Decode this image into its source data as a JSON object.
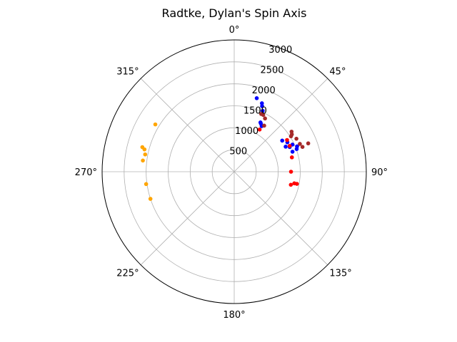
{
  "chart_data": {
    "type": "scatter",
    "projection": "polar",
    "title": "Radtke, Dylan's Spin Axis",
    "theta_zero_location": "top",
    "theta_direction": "clockwise",
    "theta_ticks": [
      {
        "deg": 0,
        "label": "0°"
      },
      {
        "deg": 45,
        "label": "45°"
      },
      {
        "deg": 90,
        "label": "90°"
      },
      {
        "deg": 135,
        "label": "135°"
      },
      {
        "deg": 180,
        "label": "180°"
      },
      {
        "deg": 225,
        "label": "225°"
      },
      {
        "deg": 270,
        "label": "270°"
      },
      {
        "deg": 315,
        "label": "315°"
      }
    ],
    "r_ticks": [
      {
        "value": 500,
        "label": "500"
      },
      {
        "value": 1000,
        "label": "1000"
      },
      {
        "value": 1500,
        "label": "1500"
      },
      {
        "value": 2000,
        "label": "2000"
      },
      {
        "value": 2500,
        "label": "2500"
      },
      {
        "value": 3000,
        "label": "3000"
      }
    ],
    "rlim": [
      0,
      3000
    ],
    "grid": true,
    "series": [
      {
        "color": "#0000ff",
        "points": [
          {
            "theta": 17,
            "r": 1750
          },
          {
            "theta": 22,
            "r": 1680
          },
          {
            "theta": 23,
            "r": 1620
          },
          {
            "theta": 25,
            "r": 1530
          },
          {
            "theta": 28,
            "r": 1270
          },
          {
            "theta": 29,
            "r": 1250
          },
          {
            "theta": 31,
            "r": 1210
          },
          {
            "theta": 57,
            "r": 1300
          },
          {
            "theta": 61,
            "r": 1380
          },
          {
            "theta": 64,
            "r": 1300
          },
          {
            "theta": 65,
            "r": 1460
          },
          {
            "theta": 66,
            "r": 1380
          },
          {
            "theta": 68,
            "r": 1540
          },
          {
            "theta": 70,
            "r": 1510
          },
          {
            "theta": 71,
            "r": 1400
          }
        ]
      },
      {
        "color": "#a52a2a",
        "points": [
          {
            "theta": 25,
            "r": 1450
          },
          {
            "theta": 27,
            "r": 1450
          },
          {
            "theta": 30,
            "r": 1400
          },
          {
            "theta": 33,
            "r": 1250
          },
          {
            "theta": 55,
            "r": 1590
          },
          {
            "theta": 57,
            "r": 1560
          },
          {
            "theta": 58,
            "r": 1520
          },
          {
            "theta": 62,
            "r": 1600
          },
          {
            "theta": 67,
            "r": 1620
          },
          {
            "theta": 69,
            "r": 1800
          },
          {
            "theta": 70,
            "r": 1650
          }
        ]
      },
      {
        "color": "#ff0000",
        "points": [
          {
            "theta": 31,
            "r": 1120
          },
          {
            "theta": 59,
            "r": 1400
          },
          {
            "theta": 65,
            "r": 1390
          },
          {
            "theta": 76,
            "r": 1350
          },
          {
            "theta": 90,
            "r": 1290
          },
          {
            "theta": 101,
            "r": 1450
          },
          {
            "theta": 101,
            "r": 1390
          },
          {
            "theta": 103,
            "r": 1320
          }
        ]
      },
      {
        "color": "#ffa500",
        "points": [
          {
            "theta": 301,
            "r": 2090
          },
          {
            "theta": 285,
            "r": 2160
          },
          {
            "theta": 284,
            "r": 2100
          },
          {
            "theta": 281,
            "r": 2060
          },
          {
            "theta": 277,
            "r": 2090
          },
          {
            "theta": 262,
            "r": 2020
          },
          {
            "theta": 252,
            "r": 2000
          }
        ]
      }
    ]
  }
}
